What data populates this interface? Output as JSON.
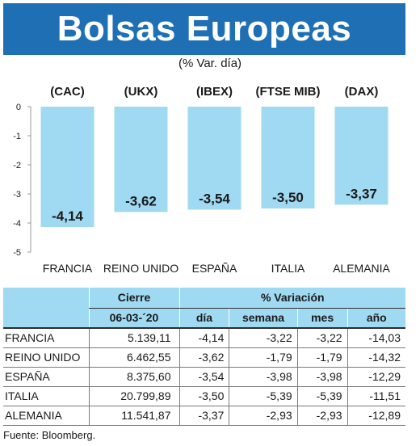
{
  "header": {
    "title": "Bolsas Europeas",
    "subtitle": "(% Var. día)"
  },
  "chart_data": {
    "type": "bar",
    "title": "Bolsas Europeas",
    "subtitle": "(% Var. día)",
    "categories": [
      "FRANCIA",
      "REINO UNIDO",
      "ESPAÑA",
      "ITALIA",
      "ALEMANIA"
    ],
    "indices": [
      "(CAC)",
      "(UKX)",
      "(IBEX)",
      "(FTSE MIB)",
      "(DAX)"
    ],
    "values": [
      -4.14,
      -3.62,
      -3.54,
      -3.5,
      -3.37
    ],
    "value_labels": [
      "-4,14",
      "-3,62",
      "-3,54",
      "-3,50",
      "-3,37"
    ],
    "yticks": [
      "0",
      "-1",
      "-2",
      "-3",
      "-4",
      "-5"
    ],
    "ylim": [
      -5,
      0
    ],
    "bar_color": "#9fd9f2",
    "grid": false,
    "xlabel": "",
    "ylabel": ""
  },
  "table": {
    "header_cierre": "Cierre",
    "header_date": "06-03-´20",
    "header_variacion": "% Variación",
    "columns": [
      "día",
      "semana",
      "mes",
      "año"
    ],
    "rows": [
      {
        "country": "FRANCIA",
        "cierre": "5.139,11",
        "dia": "-4,14",
        "semana": "-3,22",
        "mes": "-3,22",
        "ano": "-14,03"
      },
      {
        "country": "REINO UNIDO",
        "cierre": "6.462,55",
        "dia": "-3,62",
        "semana": "-1,79",
        "mes": "-1,79",
        "ano": "-14,32"
      },
      {
        "country": "ESPAÑA",
        "cierre": "8.375,60",
        "dia": "-3,54",
        "semana": "-3,98",
        "mes": "-3,98",
        "ano": "-12,29"
      },
      {
        "country": "ITALIA",
        "cierre": "20.799,89",
        "dia": "-3,50",
        "semana": "-5,39",
        "mes": "-5,39",
        "ano": "-11,51"
      },
      {
        "country": "ALEMANIA",
        "cierre": "11.541,87",
        "dia": "-3,37",
        "semana": "-2,93",
        "mes": "-2,93",
        "ano": "-12,89"
      }
    ]
  },
  "footer": {
    "source": "Fuente: Bloomberg."
  },
  "colors": {
    "banner": "#1f6fb5",
    "accent_light": "#9fd9f2"
  }
}
